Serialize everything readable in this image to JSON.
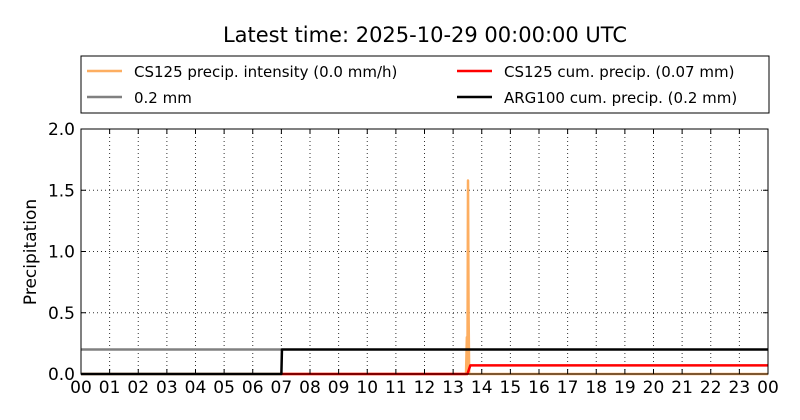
{
  "chart_data": {
    "type": "line",
    "title": "Latest time: 2025-10-29 00:00:00 UTC",
    "xlabel": "",
    "ylabel": "Precipitation",
    "x_unit": "hour",
    "xlim": [
      0,
      24
    ],
    "ylim": [
      0,
      2.0
    ],
    "x_tick_values": [
      0,
      1,
      2,
      3,
      4,
      5,
      6,
      7,
      8,
      9,
      10,
      11,
      12,
      13,
      14,
      15,
      16,
      17,
      18,
      19,
      20,
      21,
      22,
      23,
      24
    ],
    "x_tick_labels": [
      "00",
      "01",
      "02",
      "03",
      "04",
      "05",
      "06",
      "07",
      "08",
      "09",
      "10",
      "11",
      "12",
      "13",
      "14",
      "15",
      "16",
      "17",
      "18",
      "19",
      "20",
      "21",
      "22",
      "23",
      "00"
    ],
    "y_tick_values": [
      0.0,
      0.5,
      1.0,
      1.5,
      2.0
    ],
    "y_tick_labels": [
      "0.0",
      "0.5",
      "1.0",
      "1.5",
      "2.0"
    ],
    "grid": true,
    "legend_position": "top",
    "series": [
      {
        "name": "CS125 precip. intensity (0.0 mm/h)",
        "color": "#fdae61",
        "points": [
          [
            0,
            0
          ],
          [
            13.45,
            0
          ],
          [
            13.48,
            0.3
          ],
          [
            13.5,
            0
          ],
          [
            13.52,
            1.58
          ],
          [
            13.54,
            0.5
          ],
          [
            13.56,
            0
          ],
          [
            24,
            0
          ]
        ]
      },
      {
        "name": "CS125 cum. precip. (0.07 mm)",
        "color": "#ff0000",
        "points": [
          [
            7,
            0
          ],
          [
            13.5,
            0
          ],
          [
            13.6,
            0.07
          ],
          [
            24,
            0.07
          ]
        ]
      },
      {
        "name": "0.2 mm",
        "color": "#808080",
        "points": [
          [
            0,
            0.2
          ],
          [
            7,
            0.2
          ]
        ]
      },
      {
        "name": "ARG100 cum. precip. (0.2 mm)",
        "color": "#000000",
        "points": [
          [
            0,
            0
          ],
          [
            7,
            0
          ],
          [
            7.02,
            0.2
          ],
          [
            24,
            0.2
          ]
        ]
      }
    ],
    "legend_order": [
      0,
      1,
      2,
      3
    ]
  }
}
